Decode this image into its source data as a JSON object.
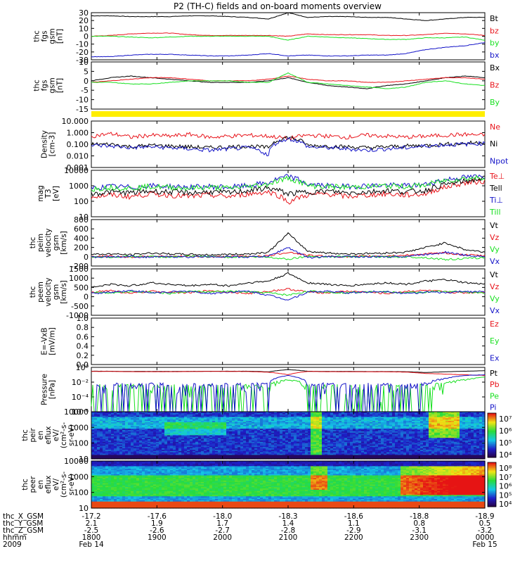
{
  "title": "P2 (TH-C) fields and on-board moments overview",
  "colors": {
    "black": "#000000",
    "red": "#e8141b",
    "green": "#18e020",
    "blue": "#1414c8",
    "yellow": "#ffee00",
    "axis": "#000000"
  },
  "bottom_axis": {
    "rows": [
      {
        "label": "thc_X_GSM",
        "values": [
          "-17.2",
          "-17.6",
          "-18.0",
          "-18.3",
          "-18.6",
          "-18.8",
          "-18.9"
        ]
      },
      {
        "label": "thc_Y_GSM",
        "values": [
          "2.1",
          "1.9",
          "1.7",
          "1.4",
          "1.1",
          "0.8",
          "0.5"
        ]
      },
      {
        "label": "thc_Z_GSM",
        "values": [
          "-2.5",
          "-2.6",
          "-2.7",
          "-2.8",
          "-2.9",
          "-3.1",
          "-3.2"
        ]
      },
      {
        "label": "hhmm",
        "values": [
          "1800",
          "1900",
          "2000",
          "2100",
          "2200",
          "2300",
          "0000"
        ]
      },
      {
        "label": "2009",
        "values": [
          "Feb 14",
          "",
          "",
          "",
          "",
          "",
          "Feb 15"
        ]
      }
    ]
  },
  "chart_data": [
    {
      "type": "line",
      "ylabel": [
        "thc",
        "fgs",
        "gsm",
        "[nT]"
      ],
      "ylim": [
        -30,
        30
      ],
      "yticks": [
        "30",
        "20",
        "10",
        "0",
        "-10",
        "-20",
        "-30"
      ],
      "series": [
        {
          "name": "Bt",
          "color": "#000000",
          "values": [
            26,
            26,
            25,
            25,
            25,
            26,
            26,
            25,
            24,
            22,
            30,
            24,
            25,
            25,
            24,
            24,
            22,
            20,
            22,
            24,
            24
          ]
        },
        {
          "name": "bz",
          "color": "#e8141b",
          "values": [
            0,
            1,
            3,
            4,
            4,
            2,
            1,
            1,
            1,
            1,
            0,
            3,
            2,
            2,
            2,
            1,
            1,
            2,
            4,
            3,
            1
          ]
        },
        {
          "name": "by",
          "color": "#18e020",
          "values": [
            0,
            0,
            -1,
            -2,
            -1,
            0,
            0,
            0,
            0,
            0,
            -5,
            0,
            -1,
            -2,
            -3,
            -4,
            -4,
            -2,
            -2,
            -1,
            -5
          ]
        },
        {
          "name": "bx",
          "color": "#1414c8",
          "values": [
            -26,
            -26,
            -24,
            -23,
            -23,
            -24,
            -25,
            -25,
            -24,
            -22,
            -25,
            -24,
            -25,
            -25,
            -24,
            -24,
            -22,
            -17,
            -14,
            -12,
            -8
          ]
        }
      ]
    },
    {
      "type": "line",
      "ylabel": [
        "thc",
        "fgs",
        "gsm",
        "[nT]"
      ],
      "ylim": [
        -18,
        12
      ],
      "yticks": [
        "10",
        "5",
        "0",
        "-5",
        "-10",
        "-15"
      ],
      "series": [
        {
          "name": "Bx",
          "color": "#000000",
          "values": [
            0,
            2,
            3,
            2,
            1,
            0,
            -1,
            -1,
            -1,
            0,
            2,
            -1,
            -3,
            -4,
            -5,
            -3,
            -2,
            0,
            2,
            3,
            2
          ]
        },
        {
          "name": "Bz",
          "color": "#e8141b",
          "values": [
            -1,
            0,
            1,
            2,
            2,
            1,
            0,
            0,
            0,
            1,
            3,
            1,
            0,
            0,
            -1,
            -1,
            0,
            1,
            2,
            2,
            1
          ]
        },
        {
          "name": "By",
          "color": "#18e020",
          "values": [
            -1,
            -1,
            -2,
            -2,
            -1,
            0,
            0,
            0,
            -1,
            -1,
            5,
            -1,
            -2,
            -3,
            -4,
            -5,
            -4,
            -1,
            0,
            -2,
            -3
          ]
        }
      ]
    },
    {
      "type": "line",
      "ylabel": [
        "Density",
        "[cm-3]"
      ],
      "ylim": [
        0.001,
        10
      ],
      "log": true,
      "yticks": [
        "10.000",
        "1.000",
        "0.100",
        "0.010",
        "0.001"
      ],
      "series": [
        {
          "name": "Ne",
          "color": "#e8141b",
          "values": [
            0.5,
            0.8,
            0.4,
            0.6,
            0.5,
            0.7,
            0.4,
            0.5,
            0.6,
            0.5,
            0.3,
            0.6,
            0.5,
            0.4,
            0.6,
            0.5,
            0.4,
            0.5,
            0.6,
            0.7,
            0.6
          ]
        },
        {
          "name": "Ni",
          "color": "#000000",
          "values": [
            0.1,
            0.1,
            0.06,
            0.08,
            0.07,
            0.06,
            0.05,
            0.06,
            0.07,
            0.05,
            0.4,
            0.08,
            0.07,
            0.06,
            0.05,
            0.06,
            0.07,
            0.08,
            0.1,
            0.12,
            0.15
          ]
        },
        {
          "name": "Npot",
          "color": "#1414c8",
          "values": [
            0.08,
            0.07,
            0.05,
            0.06,
            0.05,
            0.04,
            0.03,
            0.04,
            0.05,
            0.01,
            0.3,
            0.06,
            0.05,
            0.04,
            0.03,
            0.04,
            0.05,
            0.07,
            0.09,
            0.1,
            0.12
          ]
        }
      ]
    },
    {
      "type": "line",
      "ylabel": [
        "mag",
        "T3",
        "[eV]"
      ],
      "ylim": [
        10,
        10000
      ],
      "log": true,
      "yticks": [
        "10000",
        "1000",
        "100",
        "10"
      ],
      "series": [
        {
          "name": "Te⊥",
          "color": "#e8141b",
          "values": [
            200,
            250,
            200,
            300,
            250,
            200,
            250,
            200,
            300,
            400,
            80,
            250,
            300,
            200,
            250,
            300,
            250,
            300,
            800,
            1500,
            2000
          ]
        },
        {
          "name": "Tell",
          "color": "#000000",
          "values": [
            300,
            400,
            350,
            450,
            400,
            350,
            400,
            350,
            500,
            700,
            300,
            400,
            450,
            350,
            400,
            500,
            400,
            500,
            1200,
            2000,
            3000
          ]
        },
        {
          "name": "Ti⊥",
          "color": "#1414c8",
          "values": [
            700,
            900,
            800,
            1000,
            900,
            800,
            900,
            800,
            1000,
            1500,
            4000,
            1200,
            1000,
            900,
            1000,
            1100,
            1000,
            1200,
            2500,
            3500,
            4000
          ]
        },
        {
          "name": "Till",
          "color": "#18e020",
          "values": [
            600,
            800,
            700,
            900,
            800,
            700,
            800,
            700,
            900,
            1300,
            3000,
            1000,
            900,
            800,
            900,
            1000,
            900,
            1100,
            2200,
            3000,
            3500
          ]
        }
      ]
    },
    {
      "type": "line",
      "ylabel": [
        "thc",
        "peim",
        "velocity",
        "gsm",
        "[km/s]"
      ],
      "ylim": [
        -200,
        800
      ],
      "yticks": [
        "800",
        "600",
        "400",
        "200",
        "0",
        "-200"
      ],
      "series": [
        {
          "name": "Vt",
          "color": "#000000",
          "values": [
            50,
            60,
            40,
            80,
            60,
            50,
            40,
            50,
            60,
            100,
            500,
            120,
            80,
            60,
            70,
            80,
            100,
            200,
            300,
            150,
            100
          ]
        },
        {
          "name": "Vz",
          "color": "#e8141b",
          "values": [
            5,
            10,
            -10,
            20,
            0,
            10,
            -5,
            5,
            10,
            20,
            100,
            30,
            10,
            0,
            10,
            20,
            30,
            60,
            80,
            40,
            20
          ]
        },
        {
          "name": "Vy",
          "color": "#18e020",
          "values": [
            0,
            -10,
            10,
            0,
            -5,
            5,
            0,
            -5,
            0,
            -10,
            -50,
            10,
            0,
            5,
            0,
            -5,
            0,
            -20,
            -60,
            -40,
            -20
          ]
        },
        {
          "name": "Vx",
          "color": "#1414c8",
          "values": [
            -5,
            0,
            5,
            -10,
            0,
            -5,
            5,
            0,
            -5,
            10,
            200,
            -20,
            0,
            5,
            -5,
            0,
            10,
            50,
            100,
            30,
            10
          ]
        }
      ]
    },
    {
      "type": "line",
      "ylabel": [
        "thc",
        "peem",
        "velocity",
        "gsm",
        "[km/s]"
      ],
      "ylim": [
        -1500,
        1500
      ],
      "yticks": [
        "1500",
        "1000",
        "500",
        "0",
        "-500",
        "-1000"
      ],
      "series": [
        {
          "name": "Vt",
          "color": "#000000",
          "values": [
            300,
            500,
            400,
            600,
            500,
            400,
            500,
            400,
            600,
            700,
            1200,
            600,
            500,
            400,
            500,
            600,
            500,
            700,
            800,
            600,
            500
          ]
        },
        {
          "name": "Vz",
          "color": "#e8141b",
          "values": [
            0,
            100,
            -100,
            50,
            0,
            -50,
            100,
            0,
            -100,
            50,
            200,
            0,
            -50,
            50,
            0,
            -100,
            50,
            100,
            0,
            -50,
            0
          ]
        },
        {
          "name": "Vy",
          "color": "#18e020",
          "values": [
            0,
            -50,
            50,
            0,
            -100,
            50,
            0,
            50,
            0,
            -50,
            -200,
            50,
            0,
            -50,
            50,
            0,
            -50,
            0,
            50,
            0,
            -50
          ]
        },
        {
          "name": "Vx",
          "color": "#1414c8",
          "values": [
            -100,
            0,
            100,
            -50,
            0,
            50,
            -100,
            0,
            50,
            -200,
            -500,
            0,
            50,
            -50,
            0,
            50,
            -100,
            0,
            -50,
            50,
            0
          ]
        }
      ]
    },
    {
      "type": "line",
      "ylabel": [
        "E=-VxB",
        "[mV/m]"
      ],
      "ylim": [
        0,
        1
      ],
      "yticks": [
        "1.0",
        "0.8",
        "0.6",
        "0.4",
        "0.2",
        "0.0"
      ],
      "series": [
        {
          "name": "Ez",
          "color": "#e8141b",
          "values": []
        },
        {
          "name": "Ey",
          "color": "#18e020",
          "values": []
        },
        {
          "name": "Ex",
          "color": "#1414c8",
          "values": []
        }
      ]
    },
    {
      "type": "line",
      "ylabel": [
        "Pressure",
        "[nPa]"
      ],
      "ylim": [
        1e-06,
        1
      ],
      "log": true,
      "yticks": [
        "10⁰",
        "10⁻²",
        "10⁻⁴",
        "10⁻⁶"
      ],
      "series": [
        {
          "name": "Pt",
          "color": "#000000",
          "values": [
            0.3,
            0.3,
            0.28,
            0.28,
            0.28,
            0.29,
            0.3,
            0.3,
            0.3,
            0.25,
            0.5,
            0.3,
            0.28,
            0.28,
            0.27,
            0.27,
            0.26,
            0.2,
            0.25,
            0.3,
            0.35
          ]
        },
        {
          "name": "Pb",
          "color": "#e8141b",
          "values": [
            0.28,
            0.28,
            0.26,
            0.26,
            0.26,
            0.27,
            0.28,
            0.28,
            0.27,
            0.22,
            0.1,
            0.28,
            0.26,
            0.26,
            0.25,
            0.25,
            0.23,
            0.15,
            0.12,
            0.1,
            0.08
          ]
        },
        {
          "name": "Pe",
          "color": "#18e020",
          "values": [
            0.0003,
            0.0005,
            0.0002,
            0.0003,
            0.0003,
            0.0002,
            0.0002,
            0.0002,
            0.0003,
            0.0004,
            0.02,
            0.0004,
            0.0003,
            0.0002,
            0.0003,
            0.0003,
            0.0002,
            0.0004,
            0.005,
            0.02,
            0.05
          ]
        },
        {
          "name": "Pi",
          "color": "#1414c8",
          "values": [
            0.002,
            0.003,
            0.002,
            0.003,
            0.002,
            0.002,
            0.002,
            0.002,
            0.003,
            0.004,
            0.08,
            0.004,
            0.003,
            0.002,
            0.003,
            0.003,
            0.002,
            0.004,
            0.03,
            0.08,
            0.1
          ]
        }
      ]
    },
    {
      "type": "heatmap",
      "ylabel": [
        "thc",
        "peir",
        "en",
        "eflux",
        "eV/",
        "(cm²-s-",
        "sr-eV)"
      ],
      "ylim": [
        10,
        20000
      ],
      "log": true,
      "yticks": [
        "10000",
        "1000",
        "100",
        "10"
      ],
      "colorbar_ticks": [
        "10⁷",
        "10⁶",
        "10⁵",
        "10⁴"
      ]
    },
    {
      "type": "heatmap",
      "ylabel": [
        "thc",
        "peer",
        "en",
        "eflux",
        "eV/",
        "(cm²-s-",
        "sr-eV)"
      ],
      "ylim": [
        10,
        20000
      ],
      "log": true,
      "yticks": [
        "10000",
        "1000",
        "100",
        "10"
      ],
      "colorbar_ticks": [
        "10⁸",
        "10⁷",
        "10⁶",
        "10⁵",
        "10⁴"
      ]
    }
  ]
}
